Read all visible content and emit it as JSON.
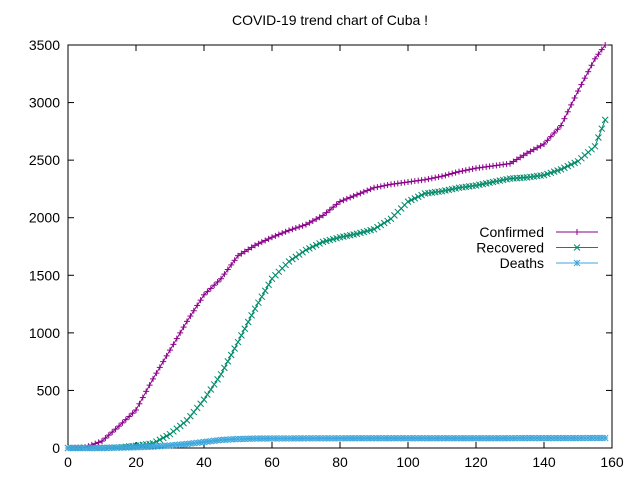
{
  "chart_data": {
    "type": "line",
    "title": "COVID-19 trend chart of Cuba !",
    "xlabel": "",
    "ylabel": "",
    "xlim": [
      0,
      160
    ],
    "ylim": [
      0,
      3500
    ],
    "xticks": [
      0,
      20,
      40,
      60,
      80,
      100,
      120,
      140,
      160
    ],
    "yticks": [
      0,
      500,
      1000,
      1500,
      2000,
      2500,
      3000,
      3500
    ],
    "grid": false,
    "legend_position": "right",
    "x": [
      0,
      5,
      10,
      15,
      20,
      25,
      30,
      35,
      40,
      45,
      50,
      55,
      60,
      65,
      70,
      75,
      80,
      85,
      90,
      95,
      100,
      105,
      110,
      115,
      120,
      125,
      130,
      135,
      140,
      145,
      150,
      155,
      158
    ],
    "series": [
      {
        "name": "Confirmed",
        "color": "#8b008b",
        "marker": "plus",
        "values": [
          0,
          5,
          60,
          190,
          330,
          600,
          850,
          1100,
          1330,
          1470,
          1670,
          1760,
          1830,
          1890,
          1940,
          2020,
          2140,
          2200,
          2260,
          2290,
          2310,
          2330,
          2360,
          2400,
          2430,
          2450,
          2470,
          2560,
          2640,
          2800,
          3100,
          3380,
          3500
        ]
      },
      {
        "name": "Recovered",
        "color": "#008b6b",
        "marker": "cross",
        "values": [
          0,
          0,
          0,
          5,
          20,
          40,
          120,
          240,
          420,
          640,
          920,
          1210,
          1470,
          1620,
          1720,
          1790,
          1830,
          1860,
          1900,
          1990,
          2140,
          2210,
          2230,
          2260,
          2280,
          2310,
          2340,
          2350,
          2370,
          2420,
          2490,
          2620,
          2850
        ]
      },
      {
        "name": "Deaths",
        "color": "#3ea6dc",
        "marker": "star",
        "values": [
          0,
          0,
          1,
          3,
          6,
          12,
          22,
          35,
          52,
          70,
          78,
          82,
          83,
          83,
          84,
          84,
          84,
          85,
          85,
          85,
          85,
          85,
          85,
          85,
          85,
          85,
          85,
          86,
          86,
          86,
          86,
          87,
          87
        ]
      }
    ]
  }
}
